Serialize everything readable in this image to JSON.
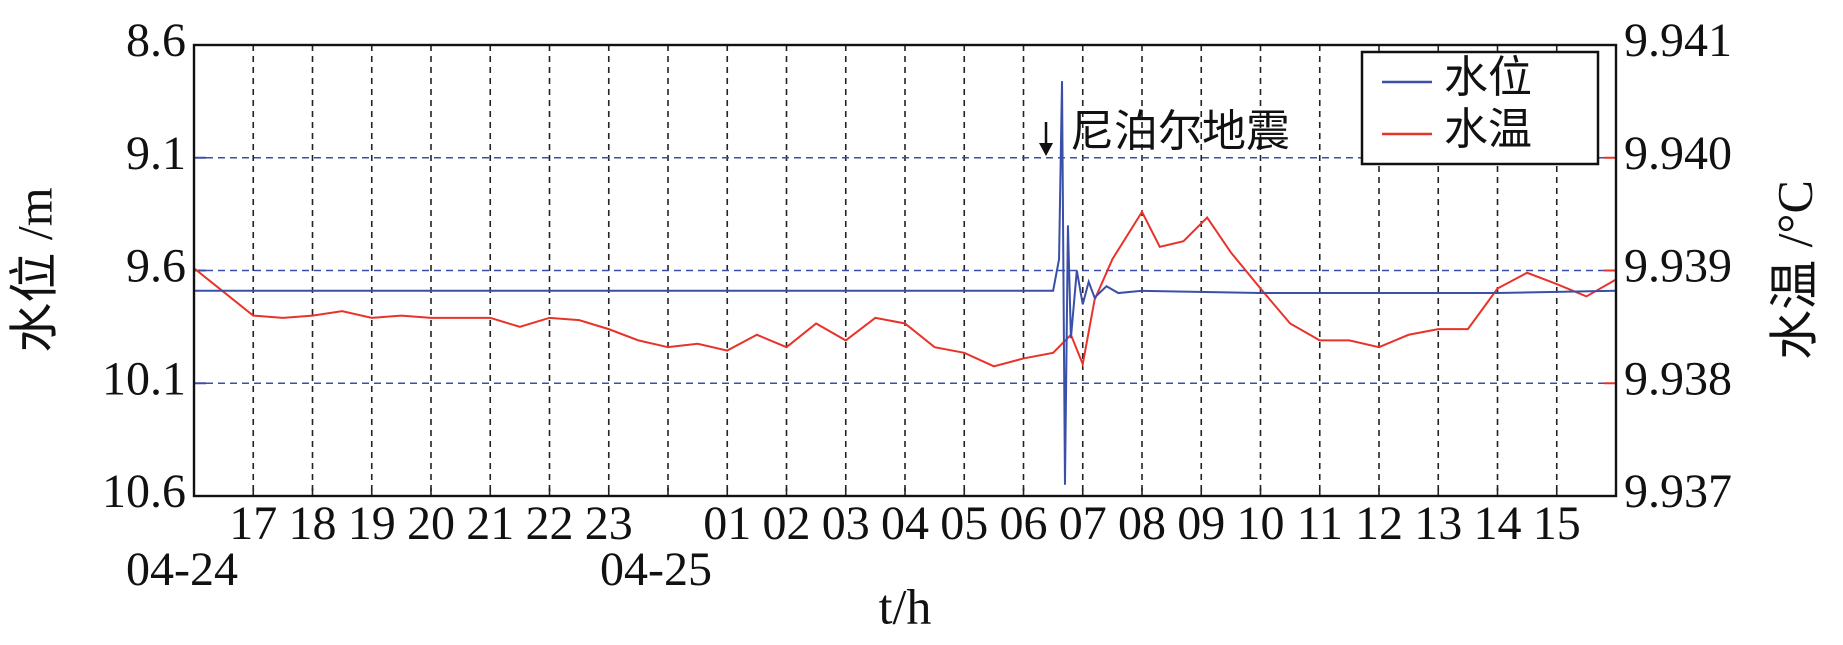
{
  "chart_data": {
    "type": "line",
    "y_label": "水位 /m",
    "y2_label": "水温 /°C",
    "x_label": "t/h",
    "xlim": [
      16,
      40
    ],
    "xticks": [
      17,
      18,
      19,
      20,
      21,
      22,
      23,
      {
        "value": 24,
        "label": null
      },
      {
        "value": 25,
        "label": "01"
      },
      {
        "value": 26,
        "label": "02"
      },
      {
        "value": 27,
        "label": "03"
      },
      {
        "value": 28,
        "label": "04"
      },
      {
        "value": 29,
        "label": "05"
      },
      {
        "value": 30,
        "label": "06"
      },
      {
        "value": 31,
        "label": "07"
      },
      {
        "value": 32,
        "label": "08"
      },
      {
        "value": 33,
        "label": "09"
      },
      {
        "value": 34,
        "label": "10"
      },
      {
        "value": 35,
        "label": "11"
      },
      {
        "value": 36,
        "label": "12"
      },
      {
        "value": 37,
        "label": "13"
      },
      {
        "value": 38,
        "label": "14"
      },
      {
        "value": 39,
        "label": "15"
      }
    ],
    "date_labels": [
      {
        "x": 16,
        "label": "04-24"
      },
      {
        "x": 24,
        "label": "04-25"
      }
    ],
    "ylim": [
      8.6,
      10.6
    ],
    "y_inverted": true,
    "yticks": [
      8.6,
      9.1,
      9.6,
      10.1,
      10.6
    ],
    "y2lim": [
      9.937,
      9.941
    ],
    "y2ticks": [
      9.937,
      9.938,
      9.939,
      9.94,
      9.941
    ],
    "y2ticks_labels": [
      "9.937",
      "9.938",
      "9.939",
      "9.940",
      "9.941"
    ],
    "grid": true,
    "legend": "upper right",
    "annotation": {
      "text": "尼泊尔地震",
      "x": 30.65
    },
    "series": [
      {
        "name": "水位",
        "color": "#3a4fa8",
        "axis": "y",
        "x": [
          16,
          20,
          24,
          28,
          30.5,
          30.6,
          30.65,
          30.7,
          30.75,
          30.8,
          30.9,
          31.0,
          31.1,
          31.2,
          31.4,
          31.6,
          32,
          34,
          38,
          40
        ],
        "values": [
          9.69,
          9.69,
          9.69,
          9.69,
          9.69,
          9.55,
          8.76,
          10.55,
          9.4,
          9.9,
          9.6,
          9.75,
          9.65,
          9.72,
          9.67,
          9.7,
          9.69,
          9.7,
          9.7,
          9.69
        ]
      },
      {
        "name": "水温",
        "color": "#e8332a",
        "axis": "y2",
        "x": [
          16,
          16.5,
          17,
          17.5,
          18,
          18.5,
          19,
          19.5,
          20,
          21,
          21.5,
          22,
          22.5,
          23,
          23.5,
          24,
          24.5,
          25,
          25.5,
          26,
          26.5,
          27,
          27.5,
          28,
          28.5,
          29,
          29.5,
          30,
          30.5,
          30.8,
          31,
          31.2,
          31.5,
          32,
          32.3,
          32.7,
          33.1,
          33.5,
          34,
          34.5,
          35,
          35.5,
          36,
          36.5,
          37,
          37.5,
          38,
          38.5,
          39,
          39.5,
          40
        ],
        "values": [
          9.93902,
          9.93881,
          9.9386,
          9.93858,
          9.9386,
          9.93864,
          9.93858,
          9.9386,
          9.93858,
          9.93858,
          9.9385,
          9.93858,
          9.93856,
          9.93848,
          9.93838,
          9.93832,
          9.93835,
          9.93829,
          9.93843,
          9.93832,
          9.93853,
          9.93838,
          9.93858,
          9.93853,
          9.93832,
          9.93827,
          9.93815,
          9.93822,
          9.93827,
          9.93843,
          9.93817,
          9.93874,
          9.9391,
          9.93952,
          9.93921,
          9.93926,
          9.93947,
          9.93916,
          9.93884,
          9.93853,
          9.93838,
          9.93838,
          9.93832,
          9.93843,
          9.93848,
          9.93848,
          9.93884,
          9.93898,
          9.93888,
          9.93877,
          9.93892
        ]
      }
    ]
  }
}
